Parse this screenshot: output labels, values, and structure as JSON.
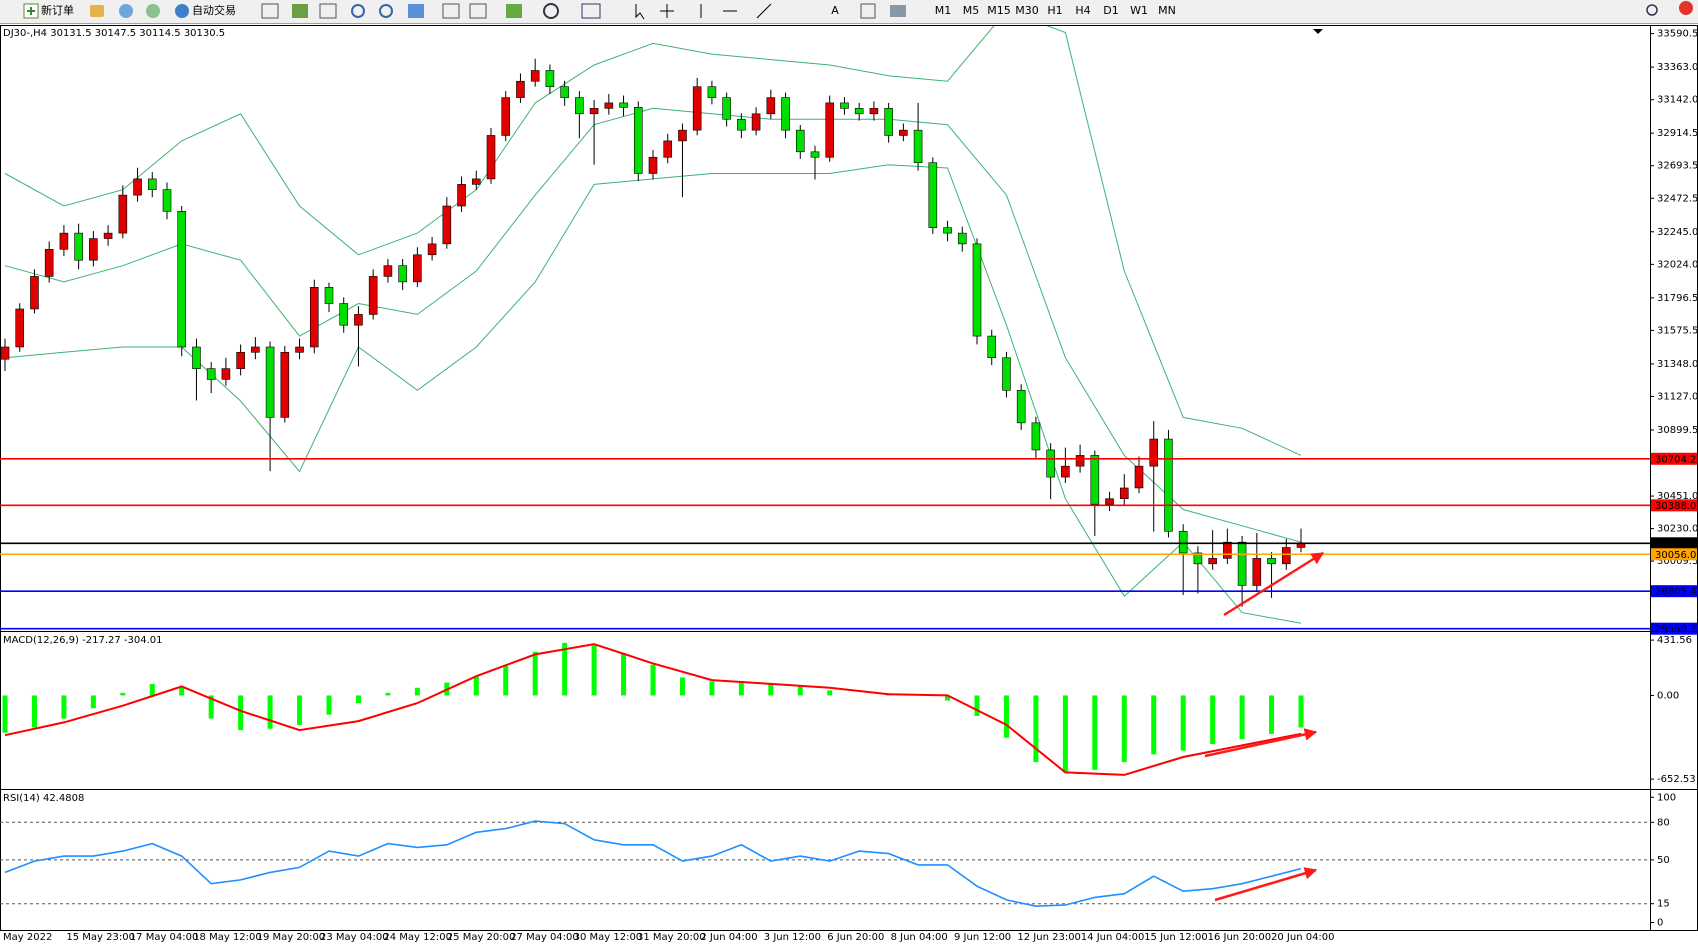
{
  "toolbar": {
    "new_order": "新订单",
    "auto_trading": "自动交易",
    "timeframes": [
      "M1",
      "M5",
      "M15",
      "M30",
      "H1",
      "H4",
      "D1",
      "W1",
      "MN"
    ]
  },
  "chart_data": [
    {
      "type": "candlestick",
      "title": "DJ30-,H4  30131.5 30147.5 30114.5 30130.5",
      "ylim": [
        29535,
        33642
      ],
      "yticks": [
        33590.5,
        {
          "value": 33363,
          "label": "33363.0"
        },
        {
          "value": 33142,
          "label": "33142.0"
        },
        32914.5,
        32693.5,
        32472.5,
        {
          "value": 32245,
          "label": "32245.0"
        },
        {
          "value": 32024,
          "label": "32024.0"
        },
        31796.5,
        31575.5,
        {
          "value": 31348,
          "label": "31348.0"
        },
        {
          "value": 31127,
          "label": "31127.0"
        },
        30899.5,
        {
          "value": 30451,
          "label": "30451.0"
        },
        {
          "value": 30230,
          "label": "30230.0"
        },
        30009.5
      ],
      "up_color": "#e00000",
      "down_color": "#00e000",
      "candles": [
        [
          31380,
          31520,
          31300,
          31463
        ],
        [
          31463,
          31760,
          31430,
          31721
        ],
        [
          31721,
          31990,
          31690,
          31942
        ],
        [
          31942,
          32180,
          31900,
          32126
        ],
        [
          32126,
          32290,
          32080,
          32236
        ],
        [
          32236,
          32300,
          31990,
          32052
        ],
        [
          32052,
          32250,
          32010,
          32199
        ],
        [
          32199,
          32290,
          32150,
          32236
        ],
        [
          32236,
          32560,
          32200,
          32494
        ],
        [
          32494,
          32680,
          32450,
          32604
        ],
        [
          32604,
          32650,
          32480,
          32531
        ],
        [
          32531,
          32580,
          32330,
          32384
        ],
        [
          32384,
          32420,
          31400,
          31463
        ],
        [
          31463,
          31520,
          31100,
          31316
        ],
        [
          31316,
          31360,
          31150,
          31243
        ],
        [
          31243,
          31390,
          31200,
          31316
        ],
        [
          31316,
          31480,
          31270,
          31427
        ],
        [
          31427,
          31530,
          31380,
          31463
        ],
        [
          31463,
          31500,
          30620,
          30985
        ],
        [
          30985,
          31470,
          30950,
          31427
        ],
        [
          31427,
          31520,
          31380,
          31463
        ],
        [
          31463,
          31920,
          31420,
          31868
        ],
        [
          31868,
          31900,
          31700,
          31758
        ],
        [
          31758,
          31800,
          31560,
          31611
        ],
        [
          31611,
          31740,
          31330,
          31684
        ],
        [
          31684,
          31990,
          31650,
          31942
        ],
        [
          31942,
          32060,
          31900,
          32015
        ],
        [
          32015,
          32060,
          31850,
          31905
        ],
        [
          31905,
          32140,
          31870,
          32089
        ],
        [
          32089,
          32210,
          32050,
          32163
        ],
        [
          32163,
          32480,
          32130,
          32420
        ],
        [
          32420,
          32620,
          32380,
          32567
        ],
        [
          32567,
          32660,
          32530,
          32604
        ],
        [
          32604,
          32950,
          32570,
          32899
        ],
        [
          32899,
          33200,
          32860,
          33156
        ],
        [
          33156,
          33320,
          33120,
          33267
        ],
        [
          33267,
          33420,
          33230,
          33340
        ],
        [
          33340,
          33380,
          33180,
          33230
        ],
        [
          33230,
          33270,
          33100,
          33156
        ],
        [
          33156,
          33200,
          32880,
          33046
        ],
        [
          33046,
          33140,
          32700,
          33083
        ],
        [
          33083,
          33180,
          33040,
          33120
        ],
        [
          33120,
          33170,
          33030,
          33090
        ],
        [
          33090,
          33130,
          32590,
          32641
        ],
        [
          32641,
          32800,
          32600,
          32751
        ],
        [
          32751,
          32910,
          32710,
          32862
        ],
        [
          32862,
          32980,
          32480,
          32935
        ],
        [
          32935,
          33290,
          32900,
          33230
        ],
        [
          33230,
          33270,
          33110,
          33156
        ],
        [
          33156,
          33190,
          32960,
          33009
        ],
        [
          33009,
          33050,
          32880,
          32935
        ],
        [
          32935,
          33090,
          32900,
          33046
        ],
        [
          33046,
          33210,
          33010,
          33156
        ],
        [
          33156,
          33190,
          32880,
          32935
        ],
        [
          32935,
          32970,
          32740,
          32788
        ],
        [
          32788,
          32830,
          32600,
          32751
        ],
        [
          32751,
          33170,
          32720,
          33120
        ],
        [
          33120,
          33160,
          33040,
          33083
        ],
        [
          33083,
          33120,
          33000,
          33046
        ],
        [
          33046,
          33130,
          33000,
          33083
        ],
        [
          33083,
          33120,
          32850,
          32899
        ],
        [
          32899,
          32980,
          32860,
          32935
        ],
        [
          32935,
          33120,
          32660,
          32714
        ],
        [
          32714,
          32750,
          32230,
          32273
        ],
        [
          32273,
          32320,
          32180,
          32236
        ],
        [
          32236,
          32280,
          32110,
          32163
        ],
        [
          32163,
          32200,
          31480,
          31537
        ],
        [
          31537,
          31580,
          31340,
          31390
        ],
        [
          31390,
          31430,
          31120,
          31169
        ],
        [
          31169,
          31210,
          30900,
          30948
        ],
        [
          30948,
          30990,
          30710,
          30764
        ],
        [
          30764,
          30810,
          30430,
          30580
        ],
        [
          30580,
          30780,
          30540,
          30654
        ],
        [
          30654,
          30800,
          30610,
          30727
        ],
        [
          30727,
          30760,
          30180,
          30396
        ],
        [
          30396,
          30480,
          30350,
          30433
        ],
        [
          30433,
          30600,
          30390,
          30506
        ],
        [
          30506,
          30720,
          30470,
          30654
        ],
        [
          30654,
          30960,
          30210,
          30838
        ],
        [
          30838,
          30900,
          30170,
          30212
        ],
        [
          30212,
          30260,
          29780,
          30065
        ],
        [
          30065,
          30110,
          29790,
          29991
        ],
        [
          29991,
          30220,
          29950,
          30028
        ],
        [
          30028,
          30230,
          29990,
          30138
        ],
        [
          30138,
          30180,
          29700,
          29844
        ],
        [
          29844,
          30200,
          29800,
          30028
        ],
        [
          30028,
          30070,
          29760,
          29991
        ],
        [
          29991,
          30160,
          29950,
          30102
        ],
        [
          30102,
          30230,
          30070,
          30130.5
        ]
      ],
      "bands": [
        {
          "color": "#3cb371",
          "values": [
            32641,
            32420,
            32531,
            32862,
            33046,
            32420,
            32089,
            32236,
            32531,
            33120,
            33377,
            33524,
            33451,
            33414,
            33377,
            33304,
            33267,
            33745,
            33598,
            31979,
            30985,
            30911,
            30727
          ]
        },
        {
          "color": "#3cb371",
          "values": [
            32015,
            31905,
            32015,
            32163,
            32052,
            31537,
            31758,
            31684,
            31979,
            32494,
            32972,
            33083,
            33046,
            33009,
            33009,
            33009,
            32972,
            32494,
            31390,
            30727,
            30360,
            30249,
            30138
          ]
        },
        {
          "color": "#3cb371",
          "values": [
            31390,
            31427,
            31463,
            31463,
            31096,
            30617,
            31463,
            31169,
            31463,
            31905,
            32567,
            32604,
            32641,
            32641,
            32641,
            32700,
            32678,
            31611,
            30433,
            29771,
            30138,
            29660,
            29587
          ]
        }
      ],
      "levels": [
        {
          "value": 30704.2,
          "label": "30704.2",
          "color": "#ff0000"
        },
        {
          "value": 30388,
          "label": "30388.0",
          "color": "#ff0000"
        },
        {
          "value": 30130.5,
          "label": "30130.5",
          "color": "#000000"
        },
        {
          "value": 30056,
          "label": "30056.0",
          "color": "#ffa500"
        },
        {
          "value": 29805.4,
          "label": "29805.4",
          "color": "#0000ff"
        },
        {
          "value": 29550.7,
          "label": "29550.7",
          "color": "#0000ff"
        }
      ]
    },
    {
      "type": "macd",
      "title": "MACD(12,26,9) -217.27 -304.01",
      "ylim": [
        -722,
        487
      ],
      "yticks": [
        431.56,
        {
          "value": 0,
          "label": "0.00"
        },
        -652.53
      ],
      "series": [
        {
          "style": "histogram",
          "color": "#00ff00",
          "values": [
            -290,
            -250,
            -180,
            -100,
            20,
            90,
            60,
            -180,
            -270,
            -260,
            -230,
            -150,
            -60,
            20,
            60,
            100,
            150,
            230,
            340,
            410,
            390,
            330,
            240,
            140,
            110,
            100,
            90,
            70,
            40,
            0,
            10,
            5,
            -40,
            -160,
            -330,
            -520,
            -600,
            -580,
            -520,
            -460,
            -430,
            -380,
            -340,
            -300,
            -250
          ]
        },
        {
          "style": "line",
          "color": "#ff0000",
          "values": [
            -310,
            -210,
            -80,
            70,
            -120,
            -270,
            -200,
            -60,
            150,
            320,
            400,
            250,
            120,
            90,
            60,
            10,
            0,
            -230,
            -600,
            -620,
            -480,
            -390,
            -300
          ]
        }
      ]
    },
    {
      "type": "line",
      "title": "RSI(14) 42.4808",
      "ylim": [
        -6,
        105
      ],
      "yticks": [
        100,
        80,
        50,
        15,
        0
      ],
      "levels": [
        80,
        50,
        15
      ],
      "color": "#1e90ff",
      "values": [
        40,
        49,
        53,
        53,
        57,
        63,
        53,
        31,
        34,
        40,
        44,
        57,
        53,
        63,
        60,
        62,
        72,
        75,
        81,
        79,
        66,
        62,
        62,
        49,
        53,
        62,
        49,
        53,
        49,
        57,
        55,
        46,
        46,
        29,
        18,
        13,
        14,
        20,
        23,
        37,
        25,
        27,
        31,
        37,
        43
      ],
      "time_labels": [
        "May 2022",
        "15 May 23:00",
        "17 May 04:00",
        "18 May 12:00",
        "19 May 20:00",
        "23 May 04:00",
        "24 May 12:00",
        "25 May 20:00",
        "27 May 04:00",
        "30 May 12:00",
        "31 May 20:00",
        "2 Jun 04:00",
        "3 Jun 12:00",
        "6 Jun 20:00",
        "8 Jun 04:00",
        "9 Jun 12:00",
        "12 Jun 23:00",
        "14 Jun 04:00",
        "15 Jun 12:00",
        "16 Jun 20:00",
        "20 Jun 04:00"
      ]
    }
  ]
}
